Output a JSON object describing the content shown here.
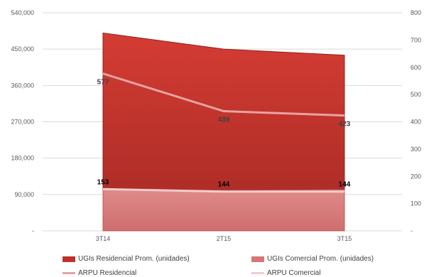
{
  "chart_data": {
    "type": "area",
    "categories": [
      "3T14",
      "2T15",
      "3T15"
    ],
    "series": [
      {
        "name": "UGIs Residencial Prom. (unidades)",
        "axis": "left",
        "kind": "area",
        "color": "#c0302a",
        "values": [
          490000,
          450000,
          435000
        ]
      },
      {
        "name": "UGIs Comercial Prom. (unidades)",
        "axis": "left",
        "kind": "area",
        "color": "#d77575",
        "values": [
          103000,
          100000,
          102000
        ]
      },
      {
        "name": "ARPU Residencial",
        "axis": "right",
        "kind": "line",
        "color": "#e8a3a3",
        "values": [
          577,
          439,
          423
        ],
        "labels": [
          "577",
          "439",
          "423"
        ]
      },
      {
        "name": "ARPU Comercial",
        "axis": "right",
        "kind": "line",
        "color": "#f2cccc",
        "values": [
          153,
          144,
          144
        ],
        "labels": [
          "153",
          "144",
          "144"
        ]
      }
    ],
    "y_left": {
      "ticks": [
        "-",
        "90,000",
        "180,000",
        "270,000",
        "360,000",
        "450,000",
        "540,000"
      ],
      "values": [
        0,
        90000,
        180000,
        270000,
        360000,
        450000,
        540000
      ],
      "ylim": [
        0,
        540000
      ]
    },
    "y_right": {
      "ticks": [
        "-",
        "100",
        "200",
        "300",
        "400",
        "500",
        "600",
        "700",
        "800"
      ],
      "values": [
        0,
        100,
        200,
        300,
        400,
        500,
        600,
        700,
        800
      ],
      "ylim": [
        0,
        800
      ]
    },
    "grid": true,
    "legend_position": "bottom"
  }
}
